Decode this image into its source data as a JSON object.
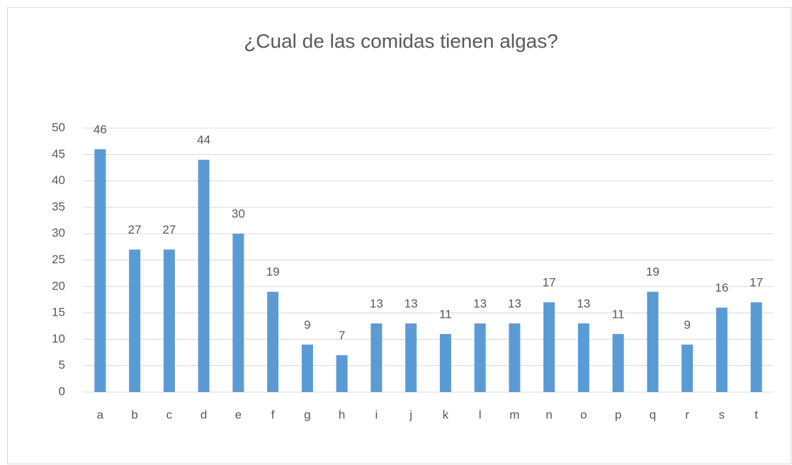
{
  "chart_data": {
    "type": "bar",
    "title": "¿Cual de las comidas tienen algas?",
    "categories": [
      "a",
      "b",
      "c",
      "d",
      "e",
      "f",
      "g",
      "h",
      "i",
      "j",
      "k",
      "l",
      "m",
      "n",
      "o",
      "p",
      "q",
      "r",
      "s",
      "t"
    ],
    "values": [
      46,
      27,
      27,
      44,
      30,
      19,
      9,
      7,
      13,
      13,
      11,
      13,
      13,
      17,
      13,
      11,
      19,
      9,
      16,
      17
    ],
    "color": "#5b9bd5",
    "ylim": [
      0,
      50
    ],
    "yticks": [
      0,
      5,
      10,
      15,
      20,
      25,
      30,
      35,
      40,
      45,
      50
    ],
    "grid": true
  }
}
